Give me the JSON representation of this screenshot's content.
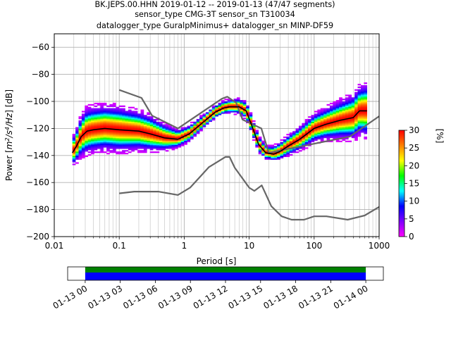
{
  "chart_data": {
    "type": "heatmap",
    "title_lines": [
      "BK.JEPS.00.HHN   2019-01-12 -- 2019-01-13  (47/47 segments)",
      "sensor_type CMG-3T sensor_sn T310034",
      "datalogger_type GuralpMinimus+ datalogger_sn MINP-DF59"
    ],
    "xlabel": "Period [s]",
    "ylabel_main": "Power [",
    "ylabel_tail": "] [dB]",
    "ylabel_unit": "m2/s4/Hz",
    "x_scale": "log",
    "xlim": [
      0.01,
      1000
    ],
    "ylim": [
      -200,
      -50
    ],
    "x_ticks": [
      0.01,
      0.1,
      1,
      10,
      100,
      1000
    ],
    "x_tick_labels": [
      "0.01",
      "0.1",
      "1",
      "10",
      "100",
      "1000"
    ],
    "y_ticks": [
      -60,
      -80,
      -100,
      -120,
      -140,
      -160,
      -180,
      -200
    ],
    "y_tick_labels": [
      "−60",
      "−80",
      "−100",
      "−120",
      "−140",
      "−160",
      "−180",
      "−200"
    ],
    "grid": true,
    "colorbar": {
      "label": "[%]",
      "range": [
        0,
        30
      ],
      "ticks": [
        0,
        5,
        10,
        15,
        20,
        25,
        30
      ],
      "tick_labels": [
        "0",
        "5",
        "10",
        "15",
        "20",
        "25",
        "30"
      ],
      "colormap": [
        "#ff00ff",
        "#8000ff",
        "#0000ff",
        "#00ffff",
        "#00ff00",
        "#ffff00",
        "#ff8000",
        "#ff0000"
      ]
    },
    "noise_models": {
      "nhnm": [
        [
          0.1,
          -91.5
        ],
        [
          0.22,
          -97.4
        ],
        [
          0.32,
          -110.5
        ],
        [
          0.8,
          -120
        ],
        [
          3.8,
          -98
        ],
        [
          4.6,
          -96.5
        ],
        [
          6.3,
          -101
        ],
        [
          7.9,
          -113.5
        ],
        [
          15.4,
          -120
        ],
        [
          20,
          -138
        ],
        [
          354.8,
          -126
        ],
        [
          1000,
          -111
        ]
      ],
      "nlnm": [
        [
          0.1,
          -168
        ],
        [
          0.17,
          -166.7
        ],
        [
          0.4,
          -166.7
        ],
        [
          0.8,
          -169.2
        ],
        [
          1.24,
          -163.7
        ],
        [
          2.4,
          -148.6
        ],
        [
          4.3,
          -141.1
        ],
        [
          5.0,
          -141.1
        ],
        [
          6.0,
          -149
        ],
        [
          10.0,
          -163.8
        ],
        [
          12.0,
          -166.2
        ],
        [
          15.6,
          -162.1
        ],
        [
          21.9,
          -177.5
        ],
        [
          31.6,
          -185
        ],
        [
          45,
          -187.5
        ],
        [
          70,
          -187.5
        ],
        [
          100,
          -185
        ],
        [
          154.5,
          -185
        ],
        [
          328.4,
          -187.5
        ],
        [
          600,
          -184.4
        ],
        [
          1000,
          -178
        ]
      ]
    },
    "mode_line": [
      [
        0.019,
        -138
      ],
      [
        0.022,
        -133
      ],
      [
        0.026,
        -126
      ],
      [
        0.032,
        -122
      ],
      [
        0.04,
        -121
      ],
      [
        0.06,
        -120
      ],
      [
        0.1,
        -121
      ],
      [
        0.2,
        -122
      ],
      [
        0.3,
        -124
      ],
      [
        0.5,
        -127
      ],
      [
        0.8,
        -128
      ],
      [
        1.2,
        -124
      ],
      [
        2,
        -115
      ],
      [
        3,
        -108
      ],
      [
        4,
        -105
      ],
      [
        5,
        -104
      ],
      [
        7,
        -104
      ],
      [
        9,
        -107
      ],
      [
        11,
        -118
      ],
      [
        14,
        -132
      ],
      [
        18,
        -138
      ],
      [
        24,
        -139
      ],
      [
        30,
        -137
      ],
      [
        40,
        -133
      ],
      [
        60,
        -128
      ],
      [
        100,
        -120
      ],
      [
        150,
        -117
      ],
      [
        250,
        -114
      ],
      [
        400,
        -112
      ],
      [
        500,
        -107
      ],
      [
        650,
        -107
      ]
    ],
    "band_width": [
      [
        0.019,
        6
      ],
      [
        0.03,
        10
      ],
      [
        0.1,
        10
      ],
      [
        0.3,
        8
      ],
      [
        0.8,
        4
      ],
      [
        2,
        3
      ],
      [
        5,
        3
      ],
      [
        10,
        4
      ],
      [
        20,
        3
      ],
      [
        50,
        5
      ],
      [
        150,
        7
      ],
      [
        400,
        10
      ],
      [
        700,
        12
      ]
    ],
    "time_axis": {
      "ticks": [
        "01-13 00",
        "01-13 03",
        "01-13 06",
        "01-13 09",
        "01-13 12",
        "01-13 15",
        "01-13 18",
        "01-13 21",
        "01-14 00"
      ],
      "range_hours": [
        -1.5,
        25.5
      ],
      "coverage_hours": [
        0,
        24
      ],
      "data_color": "#0000ff",
      "gap_free_color": "#008000"
    }
  }
}
